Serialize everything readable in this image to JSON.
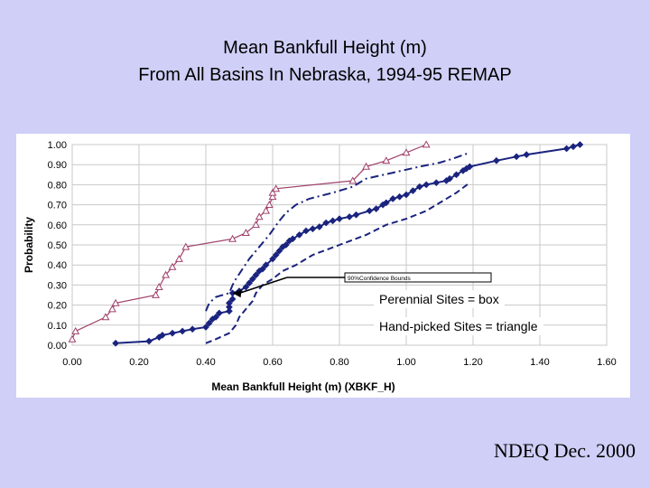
{
  "header": {
    "title_line1": "Mean Bankfull Height (m)",
    "title_line2": "From All Basins In Nebraska, 1994-95 REMAP"
  },
  "legend": {
    "perennial": "Perennial Sites = box",
    "handpicked": "Hand-picked Sites = triangle"
  },
  "footer": {
    "text": "NDEQ Dec. 2000"
  },
  "colors": {
    "slide_bg": "#cfcff7",
    "perennial": "#1a237e",
    "handpicked": "#a0406a",
    "confidence": "#1a237e",
    "grid": "#c8c8c8"
  },
  "chart_data": {
    "type": "line",
    "xlabel": "Mean Bankfull Height (m) (XBKF_H)",
    "ylabel": "Probability",
    "xlim": [
      0,
      1.6
    ],
    "ylim": [
      0,
      1.0
    ],
    "x_ticks": [
      "0.00",
      "0.20",
      "0.40",
      "0.60",
      "0.80",
      "1.00",
      "1.20",
      "1.40",
      "1.60"
    ],
    "y_ticks": [
      "0.00",
      "0.10",
      "0.20",
      "0.30",
      "0.40",
      "0.50",
      "0.60",
      "0.70",
      "0.80",
      "0.90",
      "1.00"
    ],
    "annotation": "90%Confidence Bounds",
    "annotation_target": {
      "x": 0.48,
      "y": 0.26
    },
    "series": [
      {
        "name": "Perennial Sites",
        "marker": "diamond",
        "style": "solid",
        "points": [
          [
            0.13,
            0.01
          ],
          [
            0.23,
            0.02
          ],
          [
            0.26,
            0.04
          ],
          [
            0.27,
            0.05
          ],
          [
            0.3,
            0.06
          ],
          [
            0.33,
            0.07
          ],
          [
            0.36,
            0.08
          ],
          [
            0.4,
            0.09
          ],
          [
            0.41,
            0.11
          ],
          [
            0.42,
            0.13
          ],
          [
            0.43,
            0.14
          ],
          [
            0.44,
            0.16
          ],
          [
            0.47,
            0.17
          ],
          [
            0.47,
            0.19
          ],
          [
            0.47,
            0.21
          ],
          [
            0.48,
            0.23
          ],
          [
            0.48,
            0.26
          ],
          [
            0.5,
            0.27
          ],
          [
            0.52,
            0.29
          ],
          [
            0.53,
            0.31
          ],
          [
            0.54,
            0.33
          ],
          [
            0.55,
            0.35
          ],
          [
            0.56,
            0.37
          ],
          [
            0.57,
            0.38
          ],
          [
            0.58,
            0.4
          ],
          [
            0.6,
            0.43
          ],
          [
            0.61,
            0.45
          ],
          [
            0.62,
            0.47
          ],
          [
            0.63,
            0.49
          ],
          [
            0.64,
            0.5
          ],
          [
            0.65,
            0.52
          ],
          [
            0.66,
            0.53
          ],
          [
            0.68,
            0.55
          ],
          [
            0.7,
            0.57
          ],
          [
            0.72,
            0.58
          ],
          [
            0.74,
            0.59
          ],
          [
            0.76,
            0.61
          ],
          [
            0.78,
            0.62
          ],
          [
            0.8,
            0.63
          ],
          [
            0.83,
            0.64
          ],
          [
            0.85,
            0.65
          ],
          [
            0.89,
            0.67
          ],
          [
            0.91,
            0.68
          ],
          [
            0.93,
            0.7
          ],
          [
            0.94,
            0.71
          ],
          [
            0.96,
            0.73
          ],
          [
            0.98,
            0.74
          ],
          [
            1.0,
            0.75
          ],
          [
            1.02,
            0.77
          ],
          [
            1.04,
            0.79
          ],
          [
            1.06,
            0.8
          ],
          [
            1.09,
            0.81
          ],
          [
            1.12,
            0.82
          ],
          [
            1.13,
            0.83
          ],
          [
            1.15,
            0.85
          ],
          [
            1.17,
            0.87
          ],
          [
            1.18,
            0.88
          ],
          [
            1.19,
            0.89
          ],
          [
            1.27,
            0.92
          ],
          [
            1.33,
            0.94
          ],
          [
            1.36,
            0.95
          ],
          [
            1.48,
            0.98
          ],
          [
            1.5,
            0.99
          ],
          [
            1.52,
            1.0
          ]
        ]
      },
      {
        "name": "Hand-picked Sites",
        "marker": "triangle",
        "style": "solid",
        "points": [
          [
            0.0,
            0.03
          ],
          [
            0.01,
            0.07
          ],
          [
            0.1,
            0.14
          ],
          [
            0.12,
            0.18
          ],
          [
            0.13,
            0.21
          ],
          [
            0.25,
            0.25
          ],
          [
            0.26,
            0.29
          ],
          [
            0.28,
            0.35
          ],
          [
            0.3,
            0.39
          ],
          [
            0.32,
            0.43
          ],
          [
            0.34,
            0.49
          ],
          [
            0.48,
            0.53
          ],
          [
            0.52,
            0.56
          ],
          [
            0.55,
            0.6
          ],
          [
            0.56,
            0.64
          ],
          [
            0.58,
            0.67
          ],
          [
            0.59,
            0.7
          ],
          [
            0.6,
            0.74
          ],
          [
            0.6,
            0.76
          ],
          [
            0.61,
            0.78
          ],
          [
            0.84,
            0.82
          ],
          [
            0.88,
            0.89
          ],
          [
            0.94,
            0.92
          ],
          [
            1.0,
            0.96
          ],
          [
            1.06,
            1.0
          ]
        ]
      },
      {
        "name": "Upper 90% Confidence Bound",
        "marker": "none",
        "style": "dashdot",
        "points": [
          [
            0.4,
            0.17
          ],
          [
            0.41,
            0.21
          ],
          [
            0.43,
            0.24
          ],
          [
            0.47,
            0.26
          ],
          [
            0.48,
            0.3
          ],
          [
            0.49,
            0.33
          ],
          [
            0.51,
            0.38
          ],
          [
            0.53,
            0.43
          ],
          [
            0.56,
            0.49
          ],
          [
            0.59,
            0.55
          ],
          [
            0.62,
            0.62
          ],
          [
            0.64,
            0.66
          ],
          [
            0.67,
            0.7
          ],
          [
            0.71,
            0.73
          ],
          [
            0.78,
            0.76
          ],
          [
            0.84,
            0.79
          ],
          [
            0.88,
            0.83
          ],
          [
            0.96,
            0.86
          ],
          [
            1.04,
            0.89
          ],
          [
            1.1,
            0.91
          ],
          [
            1.14,
            0.93
          ],
          [
            1.19,
            0.96
          ]
        ]
      },
      {
        "name": "Lower 90% Confidence Bound",
        "marker": "none",
        "style": "dashed",
        "points": [
          [
            0.4,
            0.01
          ],
          [
            0.43,
            0.03
          ],
          [
            0.47,
            0.06
          ],
          [
            0.49,
            0.1
          ],
          [
            0.5,
            0.14
          ],
          [
            0.52,
            0.18
          ],
          [
            0.54,
            0.22
          ],
          [
            0.55,
            0.26
          ],
          [
            0.57,
            0.3
          ],
          [
            0.6,
            0.33
          ],
          [
            0.63,
            0.37
          ],
          [
            0.67,
            0.4
          ],
          [
            0.72,
            0.45
          ],
          [
            0.8,
            0.5
          ],
          [
            0.88,
            0.55
          ],
          [
            0.94,
            0.6
          ],
          [
            1.0,
            0.63
          ],
          [
            1.06,
            0.67
          ],
          [
            1.11,
            0.72
          ],
          [
            1.15,
            0.76
          ],
          [
            1.19,
            0.81
          ]
        ]
      }
    ]
  }
}
